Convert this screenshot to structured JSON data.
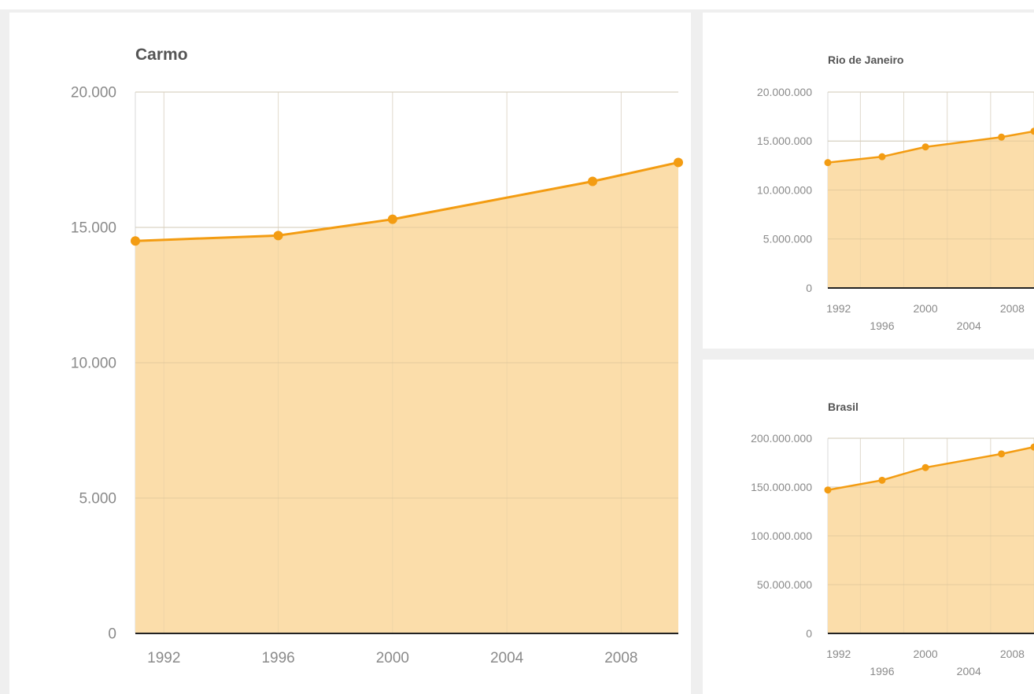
{
  "colors": {
    "series": "#F39C12",
    "fill": "#FBDDAA",
    "grid": "#d8d8d8",
    "axis": "#222222",
    "tick_text": "#8a8a8a",
    "title_text": "#555555"
  },
  "header": {
    "fragment": ""
  },
  "chart_data": [
    {
      "type": "area",
      "title": "Carmo",
      "x": [
        1991,
        1996,
        2000,
        2007,
        2010
      ],
      "values": [
        14500,
        14700,
        15300,
        16700,
        17400
      ],
      "xlim": [
        1991,
        2010
      ],
      "ylim": [
        0,
        20000
      ],
      "x_ticks": [
        "1992",
        "1996",
        "2000",
        "2004",
        "2008"
      ],
      "y_ticks": [
        "0",
        "5.000",
        "10.000",
        "15.000",
        "20.000"
      ],
      "grid": true,
      "legend": "none"
    },
    {
      "type": "area",
      "title": "Rio de Janeiro",
      "x": [
        1991,
        1996,
        2000,
        2007,
        2010
      ],
      "values": [
        12800000,
        13400000,
        14400000,
        15400000,
        16000000
      ],
      "xlim": [
        1991,
        2010
      ],
      "ylim": [
        0,
        20000000
      ],
      "x_ticks": [
        "1992",
        "1996",
        "2000",
        "2004",
        "2008"
      ],
      "y_ticks": [
        "0",
        "5.000.000",
        "10.000.000",
        "15.000.000",
        "20.000.000"
      ],
      "grid": true,
      "legend": "none"
    },
    {
      "type": "area",
      "title": "Brasil",
      "x": [
        1991,
        1996,
        2000,
        2007,
        2010
      ],
      "values": [
        147000000,
        157000000,
        170000000,
        184000000,
        191000000
      ],
      "xlim": [
        1991,
        2010
      ],
      "ylim": [
        0,
        200000000
      ],
      "x_ticks": [
        "1992",
        "1996",
        "2000",
        "2004",
        "2008"
      ],
      "y_ticks": [
        "0",
        "50.000.000",
        "100.000.000",
        "150.000.000",
        "200.000.000"
      ],
      "grid": true,
      "legend": "none"
    }
  ]
}
